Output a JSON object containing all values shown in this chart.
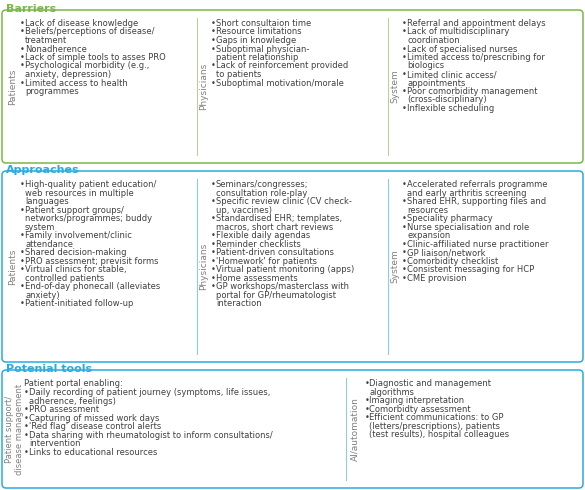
{
  "title_barriers": "Barriers",
  "title_approaches": "Approaches",
  "title_tools": "Potenial tools",
  "color_barriers": "#7ab648",
  "color_approaches": "#29abe2",
  "color_tools": "#29abe2",
  "bg_color": "#ffffff",
  "text_color": "#404040",
  "label_color": "#808080",
  "barriers_patients": [
    "Lack of disease knowledge",
    "Beliefs/perceptions of disease/\ntreatment",
    "Nonadherence",
    "Lack of simple tools to asses PRO",
    "Psychological morbidity (e.g.,\nanxiety, depression)",
    "Limited access to health\nprogrammes"
  ],
  "barriers_physicians": [
    "Short consultaion time",
    "Resource limitations",
    "Gaps in knowledge",
    "Suboptimal physician-\npatient relationship",
    "Lack of reinforcement provided\nto patients",
    "Suboptimal motivation/morale"
  ],
  "barriers_system": [
    "Referral and appointment delays",
    "Lack of multidisciplinary\ncoordination",
    "Lack of specialised nurses",
    "Limited access to/prescribing for\nbiologics",
    "Limited clinic access/\nappointments",
    "Poor comorbidity management\n(cross-disciplinary)",
    "Inflexible scheduling"
  ],
  "approaches_patients": [
    "High-quality patient education/\nweb resources in multiple\nlanguages",
    "Patient support groups/\nnetworks/programmes; buddy\nsystem",
    "Family involvement/clinic\nattendance",
    "Shared decision-making",
    "PRO assessment; previsit forms",
    "Virtual clinics for stable,\ncontrolled patients",
    "End-of-day phonecall (alleviates\nanxiety)",
    "Patient-initiated follow-up"
  ],
  "approaches_physicians": [
    "Seminars/congresses;\nconsultation role-play",
    "Specific review clinic (CV check-\nup, vaccines)",
    "Standardised EHR; templates,\nmacros, short chart reviews",
    "Flexible daily agendas",
    "Reminder checklists",
    "Patient-driven consultations",
    "'Homework' for patients",
    "Virtual patient monitoring (apps)",
    "Home assessments",
    "GP workshops/masterclass with\nportal for GP/rheumatologist\ninteraction"
  ],
  "approaches_system": [
    "Accelerated referrals programme\nand early arthritis screening",
    "Shared EHR, supporting files and\nresources",
    "Speciality pharmacy",
    "Nurse specialisation and role\nexpansion",
    "Clinic-affiliated nurse practitioner",
    "GP liaison/network",
    "Comorbidity checklist",
    "Consistent messaging for HCP",
    "CME provision"
  ],
  "tools_patient_header": "Patient portal enabling:",
  "tools_patient_items": [
    "Daily recording of patient journey (symptoms, life issues,\nadherence, feelings)",
    "PRO assessment",
    "Capturing of missed work days",
    "'Red flag' disease control alerts",
    "Data sharing with rheumatologist to inform consultations/\nintervention",
    "Links to educational resources"
  ],
  "tools_ai_items": [
    "Diagnostic and management\nalgorithms",
    "Imaging interpretation",
    "Comorbidty assessment",
    "Efficient communications: to GP\n(letters/prescriptions), patients\n(test results), hospital colleagues"
  ]
}
